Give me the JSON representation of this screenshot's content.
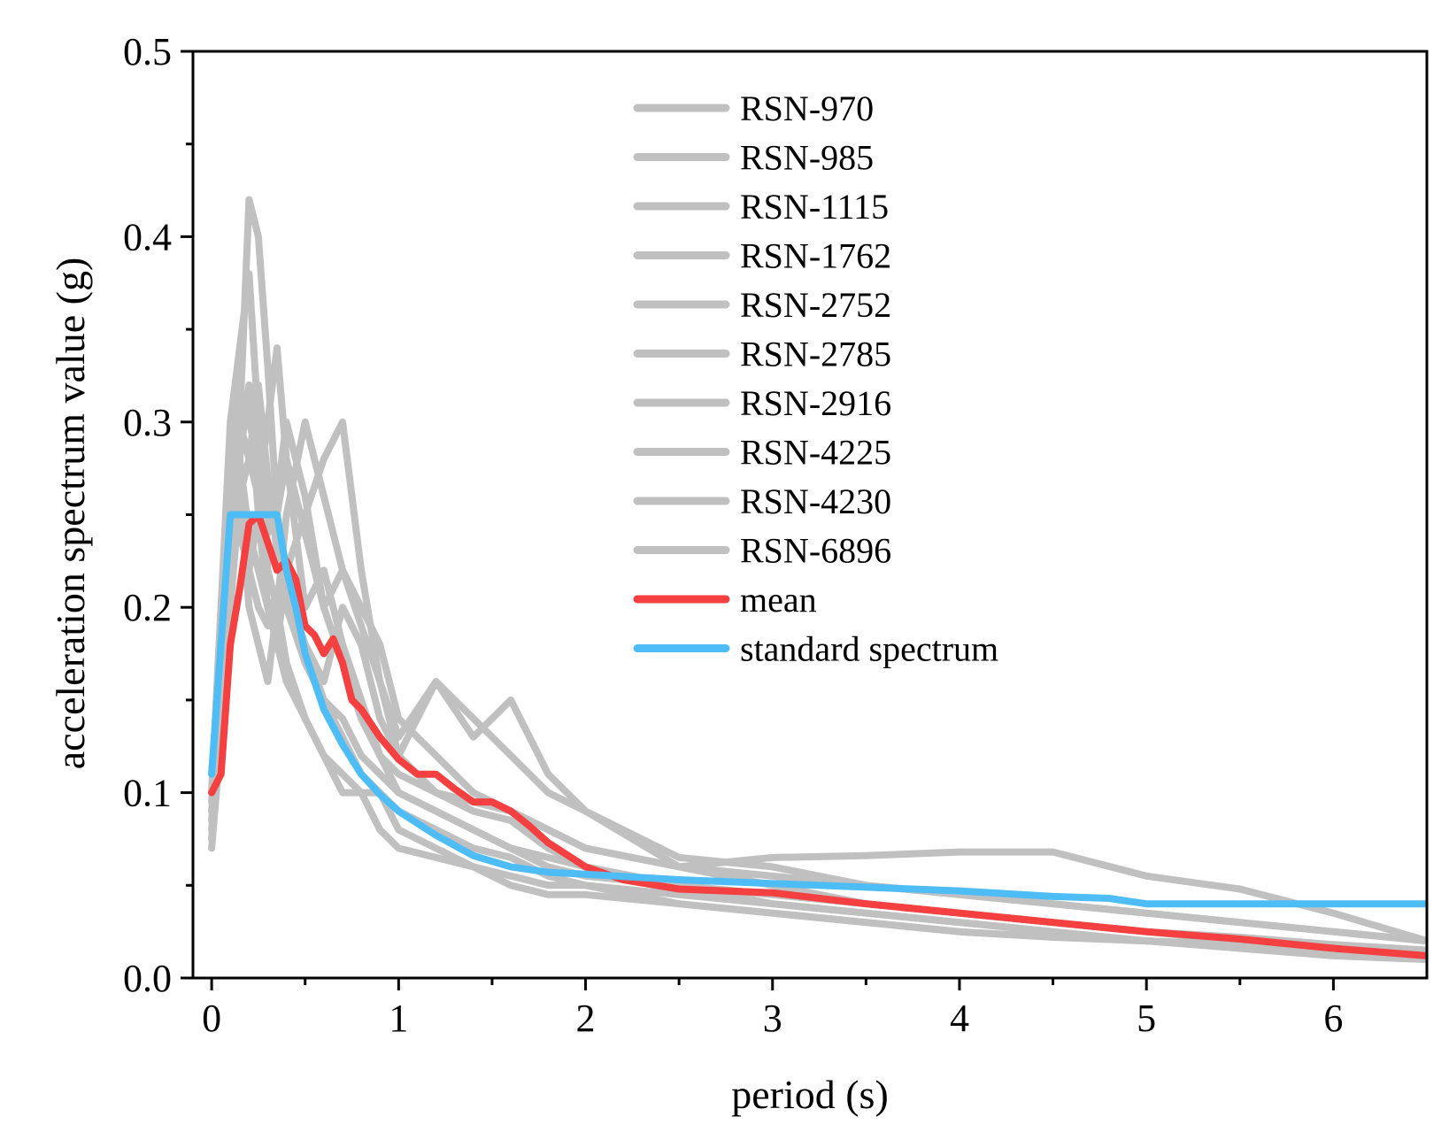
{
  "chart_data": {
    "type": "line",
    "title": "",
    "xlabel": "period (s)",
    "ylabel": "acceleration spectrum value (g)",
    "xlim": [
      -0.1,
      6.5
    ],
    "ylim": [
      0,
      0.5
    ],
    "xticks": [
      0,
      1,
      2,
      3,
      4,
      5,
      6
    ],
    "xtick_labels": [
      "0",
      "1",
      "2",
      "3",
      "4",
      "5",
      "6"
    ],
    "yticks": [
      0,
      0.1,
      0.2,
      0.3,
      0.4,
      0.5
    ],
    "ytick_labels": [
      "0.0",
      "0.1",
      "0.2",
      "0.3",
      "0.4",
      "0.5"
    ],
    "grid": false,
    "legend_position": "top-center",
    "colors": {
      "records": "#c0c0c0",
      "mean": "#f44040",
      "standard": "#4fbdf5",
      "axis": "#000000"
    },
    "series": [
      {
        "name": "RSN-970",
        "color": "#c0c0c0",
        "x": [
          0,
          0.05,
          0.1,
          0.15,
          0.2,
          0.25,
          0.3,
          0.35,
          0.4,
          0.5,
          0.6,
          0.7,
          0.8,
          0.9,
          1.0,
          1.2,
          1.4,
          1.6,
          1.8,
          2.0,
          2.5,
          3.0,
          3.5,
          4.0,
          4.5,
          5.0,
          5.5,
          6.0,
          6.5
        ],
        "y": [
          0.075,
          0.15,
          0.28,
          0.3,
          0.42,
          0.4,
          0.33,
          0.25,
          0.28,
          0.2,
          0.22,
          0.18,
          0.15,
          0.12,
          0.11,
          0.1,
          0.09,
          0.085,
          0.07,
          0.06,
          0.05,
          0.045,
          0.04,
          0.035,
          0.03,
          0.025,
          0.022,
          0.018,
          0.015
        ]
      },
      {
        "name": "RSN-985",
        "color": "#c0c0c0",
        "x": [
          0,
          0.05,
          0.1,
          0.15,
          0.2,
          0.25,
          0.3,
          0.35,
          0.4,
          0.5,
          0.6,
          0.7,
          0.8,
          0.9,
          1.0,
          1.2,
          1.4,
          1.6,
          1.8,
          2.0,
          2.5,
          3.0,
          3.5,
          4.0,
          4.5,
          5.0,
          5.5,
          6.0,
          6.5
        ],
        "y": [
          0.09,
          0.12,
          0.25,
          0.32,
          0.3,
          0.28,
          0.24,
          0.26,
          0.3,
          0.26,
          0.2,
          0.17,
          0.14,
          0.12,
          0.1,
          0.09,
          0.08,
          0.07,
          0.065,
          0.06,
          0.05,
          0.04,
          0.035,
          0.03,
          0.025,
          0.02,
          0.018,
          0.015,
          0.012
        ]
      },
      {
        "name": "RSN-1115",
        "color": "#c0c0c0",
        "x": [
          0,
          0.05,
          0.1,
          0.15,
          0.2,
          0.25,
          0.3,
          0.35,
          0.4,
          0.5,
          0.6,
          0.7,
          0.8,
          0.9,
          1.0,
          1.2,
          1.4,
          1.6,
          1.8,
          2.0,
          2.5,
          3.0,
          3.5,
          4.0,
          4.5,
          5.0,
          5.5,
          6.0,
          6.5
        ],
        "y": [
          0.1,
          0.2,
          0.26,
          0.24,
          0.22,
          0.25,
          0.2,
          0.18,
          0.22,
          0.25,
          0.28,
          0.3,
          0.22,
          0.16,
          0.12,
          0.16,
          0.14,
          0.12,
          0.1,
          0.09,
          0.06,
          0.05,
          0.04,
          0.035,
          0.03,
          0.025,
          0.02,
          0.018,
          0.015
        ]
      },
      {
        "name": "RSN-1762",
        "color": "#c0c0c0",
        "x": [
          0,
          0.05,
          0.1,
          0.15,
          0.2,
          0.25,
          0.3,
          0.35,
          0.4,
          0.5,
          0.6,
          0.7,
          0.8,
          0.9,
          1.0,
          1.2,
          1.4,
          1.6,
          1.8,
          2.0,
          2.5,
          3.0,
          3.5,
          4.0,
          4.5,
          5.0,
          5.5,
          6.0,
          6.5
        ],
        "y": [
          0.11,
          0.18,
          0.24,
          0.3,
          0.28,
          0.26,
          0.3,
          0.34,
          0.28,
          0.24,
          0.2,
          0.22,
          0.2,
          0.18,
          0.14,
          0.12,
          0.1,
          0.09,
          0.08,
          0.07,
          0.06,
          0.055,
          0.05,
          0.045,
          0.04,
          0.035,
          0.03,
          0.025,
          0.02
        ]
      },
      {
        "name": "RSN-2752",
        "color": "#c0c0c0",
        "x": [
          0,
          0.05,
          0.1,
          0.15,
          0.2,
          0.25,
          0.3,
          0.35,
          0.4,
          0.5,
          0.6,
          0.7,
          0.8,
          0.9,
          1.0,
          1.2,
          1.4,
          1.6,
          1.8,
          2.0,
          2.5,
          3.0,
          3.5,
          4.0,
          4.5,
          5.0,
          5.5,
          6.0,
          6.5
        ],
        "y": [
          0.07,
          0.13,
          0.2,
          0.26,
          0.28,
          0.32,
          0.27,
          0.23,
          0.2,
          0.18,
          0.16,
          0.2,
          0.18,
          0.14,
          0.12,
          0.1,
          0.095,
          0.09,
          0.08,
          0.07,
          0.06,
          0.065,
          0.066,
          0.068,
          0.068,
          0.055,
          0.048,
          0.035,
          0.02
        ]
      },
      {
        "name": "RSN-2785",
        "color": "#c0c0c0",
        "x": [
          0,
          0.05,
          0.1,
          0.15,
          0.2,
          0.25,
          0.3,
          0.35,
          0.4,
          0.5,
          0.6,
          0.7,
          0.8,
          0.9,
          1.0,
          1.2,
          1.4,
          1.6,
          1.8,
          2.0,
          2.5,
          3.0,
          3.5,
          4.0,
          4.5,
          5.0,
          5.5,
          6.0,
          6.5
        ],
        "y": [
          0.08,
          0.14,
          0.22,
          0.26,
          0.2,
          0.18,
          0.16,
          0.2,
          0.17,
          0.14,
          0.12,
          0.11,
          0.1,
          0.1,
          0.08,
          0.07,
          0.06,
          0.055,
          0.05,
          0.05,
          0.04,
          0.035,
          0.03,
          0.025,
          0.022,
          0.02,
          0.018,
          0.015,
          0.012
        ]
      },
      {
        "name": "RSN-2916",
        "color": "#c0c0c0",
        "x": [
          0,
          0.05,
          0.1,
          0.15,
          0.2,
          0.25,
          0.3,
          0.35,
          0.4,
          0.5,
          0.6,
          0.7,
          0.8,
          0.9,
          1.0,
          1.2,
          1.4,
          1.6,
          1.8,
          2.0,
          2.5,
          3.0,
          3.5,
          4.0,
          4.5,
          5.0,
          5.5,
          6.0,
          6.5
        ],
        "y": [
          0.1,
          0.2,
          0.3,
          0.34,
          0.38,
          0.3,
          0.22,
          0.2,
          0.25,
          0.3,
          0.26,
          0.22,
          0.19,
          0.16,
          0.13,
          0.16,
          0.13,
          0.15,
          0.11,
          0.09,
          0.065,
          0.06,
          0.05,
          0.045,
          0.04,
          0.035,
          0.03,
          0.025,
          0.02
        ]
      },
      {
        "name": "RSN-4225",
        "color": "#c0c0c0",
        "x": [
          0,
          0.05,
          0.1,
          0.15,
          0.2,
          0.25,
          0.3,
          0.35,
          0.4,
          0.5,
          0.6,
          0.7,
          0.8,
          0.9,
          1.0,
          1.2,
          1.4,
          1.6,
          1.8,
          2.0,
          2.5,
          3.0,
          3.5,
          4.0,
          4.5,
          5.0,
          5.5,
          6.0,
          6.5
        ],
        "y": [
          0.09,
          0.16,
          0.24,
          0.28,
          0.32,
          0.25,
          0.2,
          0.18,
          0.16,
          0.14,
          0.12,
          0.1,
          0.1,
          0.08,
          0.07,
          0.065,
          0.06,
          0.05,
          0.045,
          0.045,
          0.04,
          0.035,
          0.03,
          0.025,
          0.022,
          0.02,
          0.017,
          0.014,
          0.01
        ]
      },
      {
        "name": "RSN-4230",
        "color": "#c0c0c0",
        "x": [
          0,
          0.05,
          0.1,
          0.15,
          0.2,
          0.25,
          0.3,
          0.35,
          0.4,
          0.5,
          0.6,
          0.7,
          0.8,
          0.9,
          1.0,
          1.2,
          1.4,
          1.6,
          1.8,
          2.0,
          2.5,
          3.0,
          3.5,
          4.0,
          4.5,
          5.0,
          5.5,
          6.0,
          6.5
        ],
        "y": [
          0.085,
          0.15,
          0.26,
          0.27,
          0.22,
          0.2,
          0.19,
          0.21,
          0.2,
          0.17,
          0.15,
          0.13,
          0.11,
          0.1,
          0.09,
          0.08,
          0.07,
          0.065,
          0.055,
          0.05,
          0.045,
          0.04,
          0.035,
          0.03,
          0.025,
          0.02,
          0.016,
          0.012,
          0.01
        ]
      },
      {
        "name": "RSN-6896",
        "color": "#c0c0c0",
        "x": [
          0,
          0.05,
          0.1,
          0.15,
          0.2,
          0.25,
          0.3,
          0.35,
          0.4,
          0.5,
          0.6,
          0.7,
          0.8,
          0.9,
          1.0,
          1.2,
          1.4,
          1.6,
          1.8,
          2.0,
          2.5,
          3.0,
          3.5,
          4.0,
          4.5,
          5.0,
          5.5,
          6.0,
          6.5
        ],
        "y": [
          0.095,
          0.17,
          0.25,
          0.28,
          0.24,
          0.22,
          0.2,
          0.19,
          0.21,
          0.18,
          0.15,
          0.14,
          0.12,
          0.11,
          0.1,
          0.09,
          0.08,
          0.07,
          0.06,
          0.055,
          0.05,
          0.045,
          0.04,
          0.035,
          0.03,
          0.025,
          0.02,
          0.016,
          0.012
        ]
      },
      {
        "name": "mean",
        "color": "#f44040",
        "x": [
          0,
          0.05,
          0.1,
          0.15,
          0.2,
          0.25,
          0.3,
          0.35,
          0.4,
          0.45,
          0.5,
          0.55,
          0.6,
          0.65,
          0.7,
          0.75,
          0.8,
          0.9,
          1.0,
          1.1,
          1.2,
          1.3,
          1.4,
          1.5,
          1.6,
          1.7,
          1.8,
          2.0,
          2.2,
          2.5,
          3.0,
          3.5,
          4.0,
          4.5,
          5.0,
          5.5,
          6.0,
          6.5
        ],
        "y": [
          0.1,
          0.11,
          0.18,
          0.21,
          0.245,
          0.25,
          0.235,
          0.22,
          0.225,
          0.215,
          0.19,
          0.185,
          0.175,
          0.183,
          0.17,
          0.15,
          0.145,
          0.13,
          0.118,
          0.11,
          0.11,
          0.102,
          0.095,
          0.095,
          0.09,
          0.082,
          0.073,
          0.06,
          0.053,
          0.048,
          0.046,
          0.04,
          0.035,
          0.03,
          0.025,
          0.021,
          0.016,
          0.012
        ]
      },
      {
        "name": "standard spectrum",
        "color": "#4fbdf5",
        "x": [
          0,
          0.1,
          0.2,
          0.3,
          0.35,
          0.4,
          0.45,
          0.5,
          0.55,
          0.6,
          0.7,
          0.8,
          0.9,
          1.0,
          1.2,
          1.4,
          1.6,
          1.8,
          2.0,
          2.5,
          3.0,
          3.5,
          4.0,
          4.5,
          4.8,
          5.0,
          5.5,
          6.0,
          6.5
        ],
        "y": [
          0.11,
          0.25,
          0.25,
          0.25,
          0.25,
          0.22,
          0.2,
          0.175,
          0.16,
          0.145,
          0.126,
          0.11,
          0.099,
          0.09,
          0.077,
          0.066,
          0.06,
          0.057,
          0.056,
          0.053,
          0.051,
          0.049,
          0.047,
          0.044,
          0.043,
          0.04,
          0.04,
          0.04,
          0.04
        ]
      }
    ]
  }
}
